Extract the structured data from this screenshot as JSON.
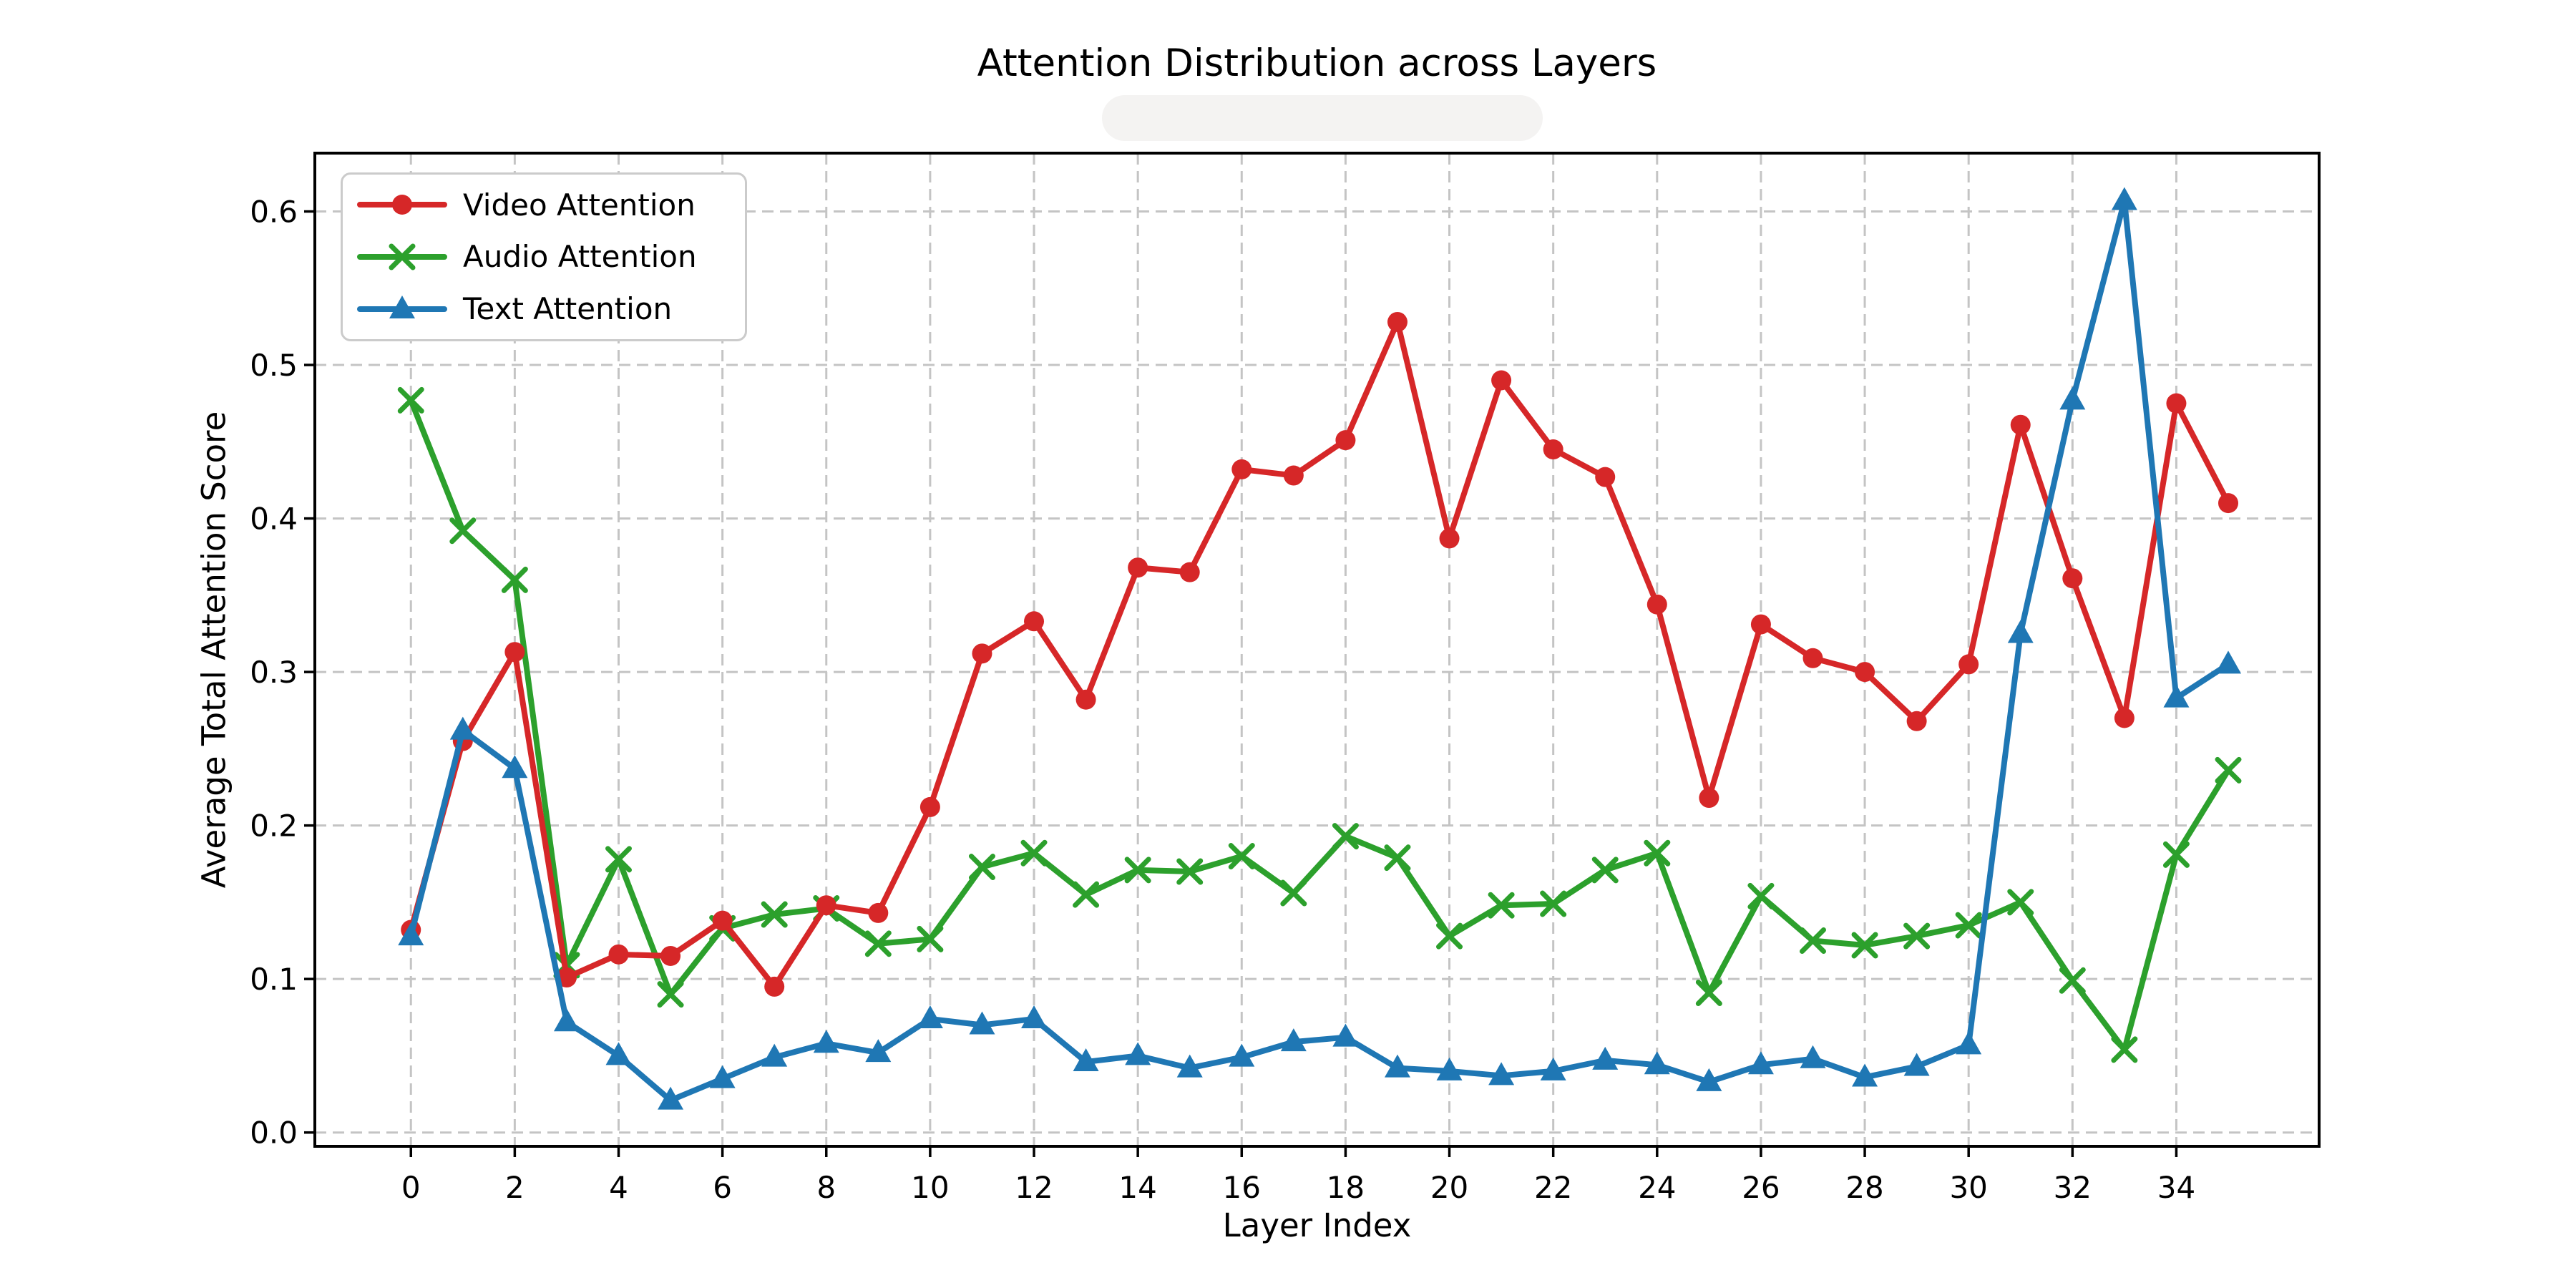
{
  "figure": {
    "background": "#ffffff"
  },
  "chart_data": {
    "type": "line",
    "title": "Attention Distribution across Layers",
    "xlabel": "Layer Index",
    "ylabel": "Average Total Attention Score",
    "x": [
      0,
      1,
      2,
      3,
      4,
      5,
      6,
      7,
      8,
      9,
      10,
      11,
      12,
      13,
      14,
      15,
      16,
      17,
      18,
      19,
      20,
      21,
      22,
      23,
      24,
      25,
      26,
      27,
      28,
      29,
      30,
      31,
      32,
      33,
      34,
      35
    ],
    "series": [
      {
        "name": "Video Attention",
        "color": "#d62728",
        "marker": "circle",
        "values": [
          0.132,
          0.255,
          0.313,
          0.101,
          0.116,
          0.115,
          0.138,
          0.095,
          0.148,
          0.143,
          0.212,
          0.312,
          0.333,
          0.282,
          0.368,
          0.365,
          0.432,
          0.428,
          0.451,
          0.528,
          0.387,
          0.49,
          0.445,
          0.427,
          0.344,
          0.218,
          0.331,
          0.309,
          0.3,
          0.268,
          0.305,
          0.461,
          0.361,
          0.27,
          0.475,
          0.41
        ]
      },
      {
        "name": "Audio Attention",
        "color": "#2ca02c",
        "marker": "x",
        "values": [
          0.477,
          0.392,
          0.36,
          0.109,
          0.178,
          0.09,
          0.133,
          0.142,
          0.146,
          0.123,
          0.126,
          0.173,
          0.182,
          0.155,
          0.171,
          0.17,
          0.18,
          0.156,
          0.193,
          0.179,
          0.128,
          0.148,
          0.149,
          0.171,
          0.182,
          0.091,
          0.154,
          0.125,
          0.122,
          0.128,
          0.135,
          0.15,
          0.099,
          0.054,
          0.181,
          0.236
        ]
      },
      {
        "name": "Text Attention",
        "color": "#1f77b4",
        "marker": "triangle",
        "values": [
          0.128,
          0.262,
          0.237,
          0.072,
          0.05,
          0.021,
          0.035,
          0.049,
          0.058,
          0.052,
          0.074,
          0.07,
          0.074,
          0.046,
          0.05,
          0.042,
          0.049,
          0.059,
          0.062,
          0.042,
          0.04,
          0.037,
          0.04,
          0.047,
          0.044,
          0.033,
          0.044,
          0.048,
          0.036,
          0.043,
          0.057,
          0.325,
          0.477,
          0.607,
          0.283,
          0.305
        ]
      }
    ],
    "xlim": [
      -1.85,
      36.75
    ],
    "ylim": [
      -0.009,
      0.638
    ],
    "xticks": [
      0,
      2,
      4,
      6,
      8,
      10,
      12,
      14,
      16,
      18,
      20,
      22,
      24,
      26,
      28,
      30,
      32,
      34
    ],
    "yticks": [
      0.0,
      0.1,
      0.2,
      0.3,
      0.4,
      0.5,
      0.6
    ],
    "grid": true,
    "grid_style": "dashed",
    "legend_position": "upper left",
    "legend_entries": [
      "Video Attention",
      "Audio Attention",
      "Text Attention"
    ]
  },
  "colors": {
    "grid": "#c4c4c4",
    "spine": "#000000",
    "tick_text": "#000000",
    "background": "#ffffff",
    "legend_border": "#cbcbcb"
  }
}
